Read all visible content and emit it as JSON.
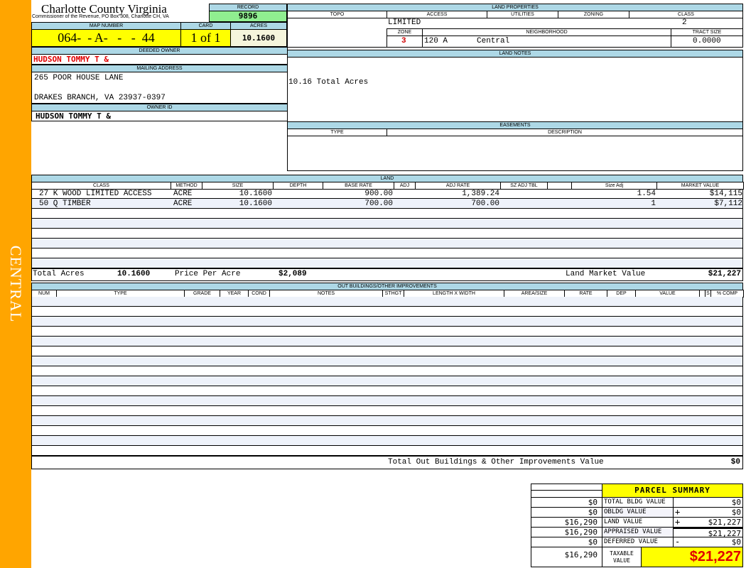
{
  "sidebar": {
    "label": "CENTRAL",
    "color": "#ffa500"
  },
  "header": {
    "title": "Charlotte County Virginia",
    "subtitle": "Commissioner of the Revenue, PO Box 308, Charlotte CH, VA"
  },
  "record": {
    "label": "RECORD",
    "value": "9896"
  },
  "map": {
    "map_label": "MAP NUMBER",
    "map_value": "064-  - A-   -   -  44",
    "card_label": "CARD",
    "card_value": "1 of 1",
    "acres_label": "ACRES",
    "acres_value": "10.1600"
  },
  "owner": {
    "deeded_label": "DEEDED OWNER",
    "deeded_value": "HUDSON TOMMY T &",
    "mailing_label": "MAILING ADDRESS",
    "address1": "265 POOR HOUSE LANE",
    "address2": "DRAKES BRANCH, VA 23937-0397",
    "owner_id_label": "OWNER ID",
    "owner_id_value": "HUDSON TOMMY T &"
  },
  "land_properties": {
    "title": "LAND PROPERTIES",
    "topo_label": "TOPO",
    "access_label": "ACCESS",
    "utilities_label": "UTILITIES",
    "zoning_label": "ZONING",
    "class_label": "CLASS",
    "access_value": "LIMITED",
    "class_value": "2",
    "zone_label": "ZONE",
    "neighborhood_label": "NEIGHBORHOOD",
    "tract_label": "TRACT SIZE",
    "zone_value": "3",
    "neighborhood_code": "120 A",
    "neighborhood_name": "Central",
    "tract_value": "0.0000"
  },
  "land_notes": {
    "title": "LAND NOTES",
    "text": "10.16 Total Acres"
  },
  "easements": {
    "title": "EASEMENTS",
    "type_label": "TYPE",
    "description_label": "DESCRIPTION"
  },
  "land": {
    "title": "LAND",
    "columns": [
      "CLASS",
      "METHOD",
      "SIZE",
      "DEPTH",
      "BASE RATE",
      "ADJ",
      "ADJ RATE",
      "SZ ADJ TBL",
      "",
      "Size Adj",
      "MARKET VALUE"
    ],
    "rows": [
      [
        "27 K WOOD LIMITED ACCESS",
        "ACRE",
        "10.1600",
        "",
        "900.00",
        "",
        "1,389.24",
        "",
        "",
        "1.54",
        "$14,115"
      ],
      [
        "50 Q TIMBER",
        "ACRE",
        "10.1600",
        "",
        "700.00",
        "",
        "700.00",
        "",
        "",
        "1",
        "$7,112"
      ]
    ],
    "total_acres_label": "Total Acres",
    "total_acres": "10.1600",
    "price_per_acre_label": "Price Per Acre",
    "price_per_acre": "$2,089",
    "market_value_label": "Land Market Value",
    "market_value": "$21,227"
  },
  "outbuildings": {
    "title": "OUT BUILDINGS/OTHER IMPROVEMENTS",
    "columns": [
      "NUM",
      "TYPE",
      "GRADE",
      "YEAR",
      "COND",
      "NOTES",
      "STHGT",
      "LENGTH X WIDTH",
      "AREA/SIZE",
      "RATE",
      "DEP",
      "VALUE",
      "",
      "S",
      "% COMP"
    ],
    "total_label": "Total Out Buildings & Other Improvements Value",
    "total_value": "$0"
  },
  "summary": {
    "title": "PARCEL SUMMARY",
    "rows": [
      {
        "left": "$0",
        "label": "TOTAL BLDG VALUE",
        "sign": "",
        "value": "$0"
      },
      {
        "left": "$0",
        "label": "OBLDG VALUE",
        "sign": "+",
        "value": "$0"
      },
      {
        "left": "$16,290",
        "label": "LAND VALUE",
        "sign": "+",
        "value": "$21,227"
      },
      {
        "left": "$16,290",
        "label": "APPRAISED VALUE",
        "sign": "",
        "value": "$21,227"
      },
      {
        "left": "$0",
        "label": "DEFERRED VALUE",
        "sign": "-",
        "value": "$0"
      }
    ],
    "taxable_left": "$16,290",
    "taxable_label": "TAXABLE VALUE",
    "taxable_value": "$21,227"
  }
}
